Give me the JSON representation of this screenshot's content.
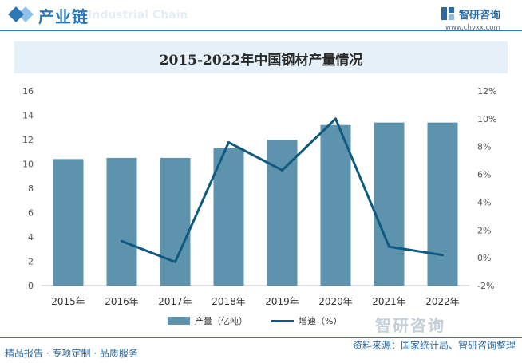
{
  "header": {
    "section_title": "产业链",
    "watermark_text": "Industrial Chain"
  },
  "brand": {
    "name": "智研咨询",
    "url": "www.chyxx.com",
    "watermark": "智研咨询"
  },
  "footer": {
    "left": "精品报告 · 专项定制 · 品质服务",
    "source": "资料来源：国家统计局、智研咨询整理"
  },
  "colors": {
    "accent": "#2b77b8",
    "bar": "#5d93ad",
    "line": "#0e5a80",
    "title_band": "#e6f0f8"
  },
  "chart_data": {
    "type": "bar",
    "title": "2015-2022年中国钢材产量情况",
    "categories": [
      "2015年",
      "2016年",
      "2017年",
      "2018年",
      "2019年",
      "2020年",
      "2021年",
      "2022年"
    ],
    "series": [
      {
        "name": "产量（亿吨）",
        "type": "bar",
        "axis": "left",
        "values": [
          10.4,
          10.5,
          10.5,
          11.3,
          12.0,
          13.2,
          13.4,
          13.4
        ]
      },
      {
        "name": "增速（%）",
        "type": "line",
        "axis": "right",
        "values": [
          null,
          1.2,
          -0.3,
          8.3,
          6.3,
          10.0,
          0.8,
          0.2
        ]
      }
    ],
    "y_left": {
      "ylim": [
        0,
        16
      ],
      "ticks": [
        "0",
        "2",
        "4",
        "6",
        "8",
        "10",
        "12",
        "14",
        "16"
      ]
    },
    "y_right": {
      "ylim": [
        -2,
        12
      ],
      "ticks": [
        "-2%",
        "0%",
        "2%",
        "4%",
        "6%",
        "8%",
        "10%",
        "12%"
      ]
    },
    "grid": false,
    "legend_position": "bottom"
  }
}
